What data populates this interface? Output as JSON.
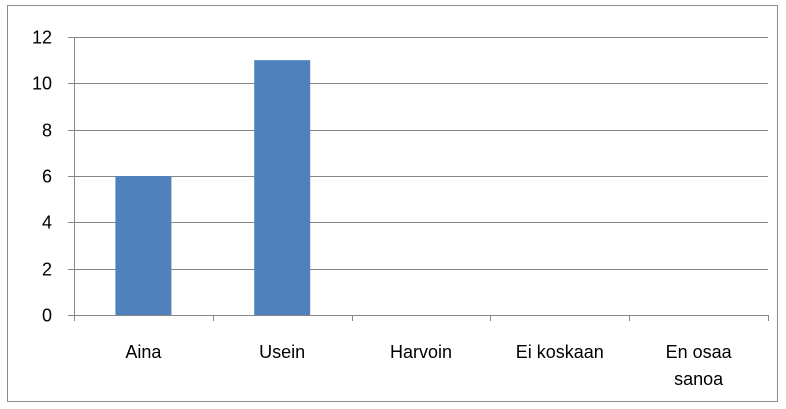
{
  "chart_data": {
    "type": "bar",
    "categories": [
      [
        "Aina"
      ],
      [
        "Usein"
      ],
      [
        "Harvoin"
      ],
      [
        "Ei koskaan"
      ],
      [
        "En osaa",
        "sanoa"
      ]
    ],
    "values": [
      6,
      11,
      0,
      0,
      0
    ],
    "ylim": [
      0,
      12
    ],
    "yticks": [
      0,
      2,
      4,
      6,
      8,
      10,
      12
    ],
    "grid": true,
    "legend": "none",
    "colors": {
      "bar": "#4f81bd",
      "grid": "#868686",
      "axis": "#868686"
    }
  }
}
